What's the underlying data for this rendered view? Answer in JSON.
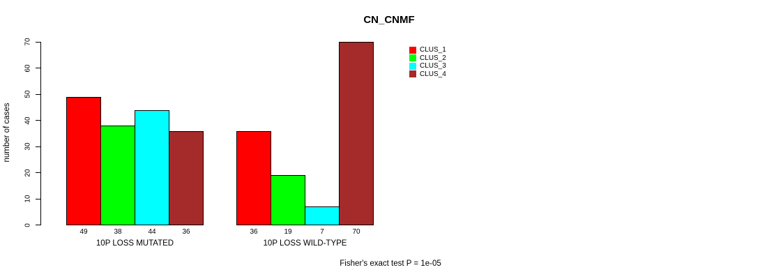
{
  "chart_data": {
    "type": "bar",
    "title": "CN_CNMF",
    "ylabel": "number of cases",
    "xlabel": "",
    "ylim": [
      0,
      70
    ],
    "yticks": [
      0,
      10,
      20,
      30,
      40,
      50,
      60,
      70
    ],
    "grid": false,
    "legend_position": "top-right-outside-plot",
    "categories": [
      "10P LOSS MUTATED",
      "10P LOSS WILD-TYPE"
    ],
    "series": [
      {
        "name": "CLUS_1",
        "color": "#FF0000",
        "values": [
          49,
          36
        ]
      },
      {
        "name": "CLUS_2",
        "color": "#00FF00",
        "values": [
          38,
          19
        ]
      },
      {
        "name": "CLUS_3",
        "color": "#00FFFF",
        "values": [
          44,
          7
        ]
      },
      {
        "name": "CLUS_4",
        "color": "#A52A2A",
        "values": [
          36,
          70
        ]
      }
    ],
    "bar_value_labels_shown": true,
    "footnote": "Fisher's exact test P = 1e-05",
    "axis_color": "#000000",
    "background_color": "#FFFFFF"
  }
}
